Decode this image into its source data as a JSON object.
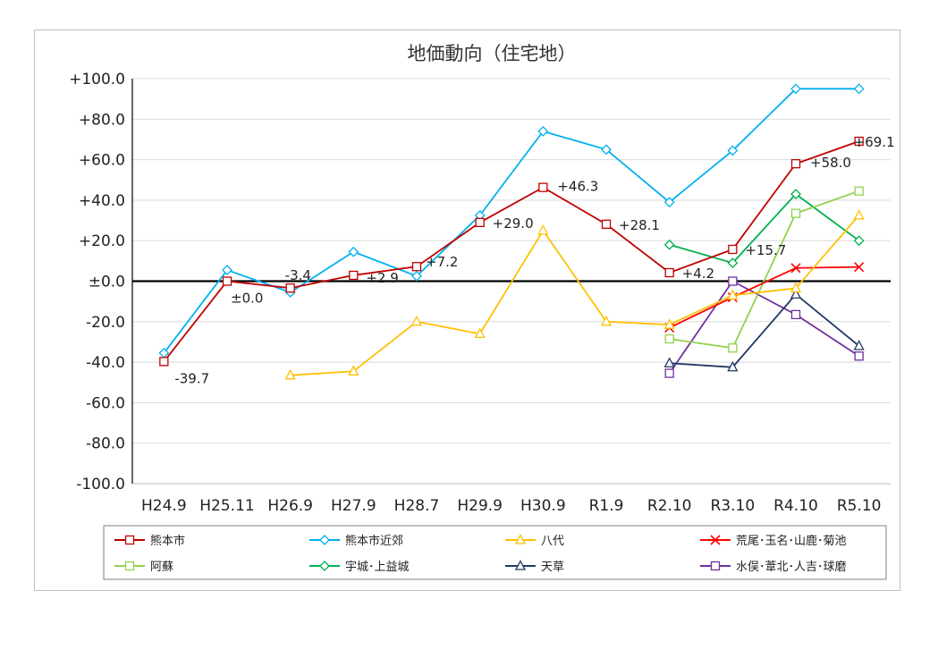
{
  "chart_data": {
    "type": "line",
    "title": "地価動向（住宅地）",
    "categories": [
      "H24.9",
      "H25.11",
      "H26.9",
      "H27.9",
      "H28.7",
      "H29.9",
      "H30.9",
      "R1.9",
      "R2.10",
      "R3.10",
      "R4.10",
      "R5.10"
    ],
    "ylim": [
      -100,
      100
    ],
    "yticks": [
      "+100.0",
      "+80.0",
      "+60.0",
      "+40.0",
      "+20.0",
      "±0.0",
      "-20.0",
      "-40.0",
      "-60.0",
      "-80.0",
      "-100.0"
    ],
    "grid": true,
    "legend": "bottom",
    "series": [
      {
        "name": "熊本市",
        "color": "#c00000",
        "marker": "square",
        "values": [
          -39.7,
          0.0,
          -3.4,
          2.9,
          7.2,
          29.0,
          46.3,
          28.1,
          4.2,
          15.7,
          58.0,
          69.1
        ]
      },
      {
        "name": "熊本市近郊",
        "color": "#00b0f0",
        "marker": "diamond",
        "values": [
          -35.5,
          5.5,
          -5.5,
          14.5,
          2.5,
          32.5,
          74.0,
          65.0,
          39.0,
          64.5,
          95.0,
          95.0
        ]
      },
      {
        "name": "八代",
        "color": "#ffc000",
        "marker": "triangle",
        "values": [
          null,
          null,
          -46.5,
          -44.5,
          -20.0,
          -26.0,
          25.0,
          -20.0,
          -21.5,
          -7.0,
          -3.5,
          32.5
        ]
      },
      {
        "name": "荒尾･玉名･山鹿･菊池",
        "color": "#ff0000",
        "marker": "x",
        "values": [
          null,
          null,
          null,
          null,
          null,
          null,
          null,
          null,
          -23.0,
          -8.0,
          6.5,
          7.0
        ]
      },
      {
        "name": "阿蘇",
        "color": "#92d050",
        "marker": "square",
        "values": [
          null,
          null,
          null,
          null,
          null,
          null,
          null,
          null,
          -28.5,
          -33.0,
          33.5,
          44.5
        ]
      },
      {
        "name": "宇城･上益城",
        "color": "#00b050",
        "marker": "diamond",
        "values": [
          null,
          null,
          null,
          null,
          null,
          null,
          null,
          null,
          18.0,
          9.0,
          43.0,
          20.0
        ]
      },
      {
        "name": "天草",
        "color": "#1f3864",
        "marker": "triangle",
        "values": [
          null,
          null,
          null,
          null,
          null,
          null,
          null,
          null,
          -40.5,
          -42.5,
          -6.5,
          -32.0
        ]
      },
      {
        "name": "水俣･葦北･人吉･球磨",
        "color": "#7030a0",
        "marker": "square",
        "values": [
          null,
          null,
          null,
          null,
          null,
          null,
          null,
          null,
          -45.5,
          0.0,
          -16.5,
          -37.0
        ]
      }
    ],
    "data_labels": [
      {
        "category": "H24.9",
        "text": "-39.7"
      },
      {
        "category": "H25.11",
        "text": "±0.0"
      },
      {
        "category": "H26.9",
        "text": "-3.4"
      },
      {
        "category": "H27.9",
        "text": "+2.9"
      },
      {
        "category": "H28.7",
        "text": "+7.2"
      },
      {
        "category": "H29.9",
        "text": "+29.0"
      },
      {
        "category": "H30.9",
        "text": "+46.3"
      },
      {
        "category": "R1.9",
        "text": "+28.1"
      },
      {
        "category": "R2.10",
        "text": "+4.2"
      },
      {
        "category": "R3.10",
        "text": "+15.7"
      },
      {
        "category": "R4.10",
        "text": "+58.0"
      },
      {
        "category": "R5.10",
        "text": "+69.1"
      }
    ]
  }
}
